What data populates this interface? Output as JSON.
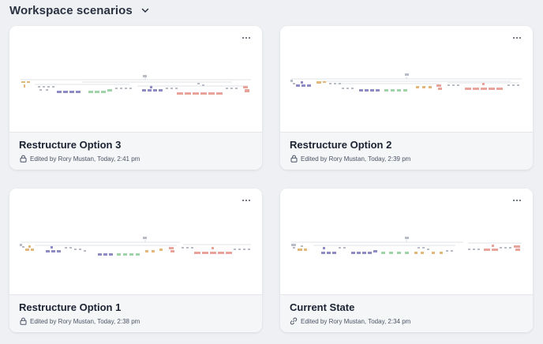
{
  "header": {
    "title": "Workspace scenarios"
  },
  "colors": {
    "background": "#eef0f3",
    "gray": "#b8bcc6",
    "purple": "#8f8cc4",
    "orange": "#e2b77a",
    "green": "#9fd3a8",
    "red": "#e8a49a"
  },
  "cards": [
    {
      "title": "Restructure Option 3",
      "meta": "Edited by Rory Mustan, Today, 2:41 pm",
      "meta_icon": "lock-icon"
    },
    {
      "title": "Restructure Option 2",
      "meta": "Edited by Rory Mustan, Today, 2:39 pm",
      "meta_icon": "lock-icon"
    },
    {
      "title": "Restructure Option 1",
      "meta": "Edited by Rory Mustan, Today, 2:38 pm",
      "meta_icon": "lock-icon"
    },
    {
      "title": "Current State",
      "meta": "Edited by Rory Mustan, Today, 2:34 pm",
      "meta_icon": "link-icon"
    }
  ]
}
